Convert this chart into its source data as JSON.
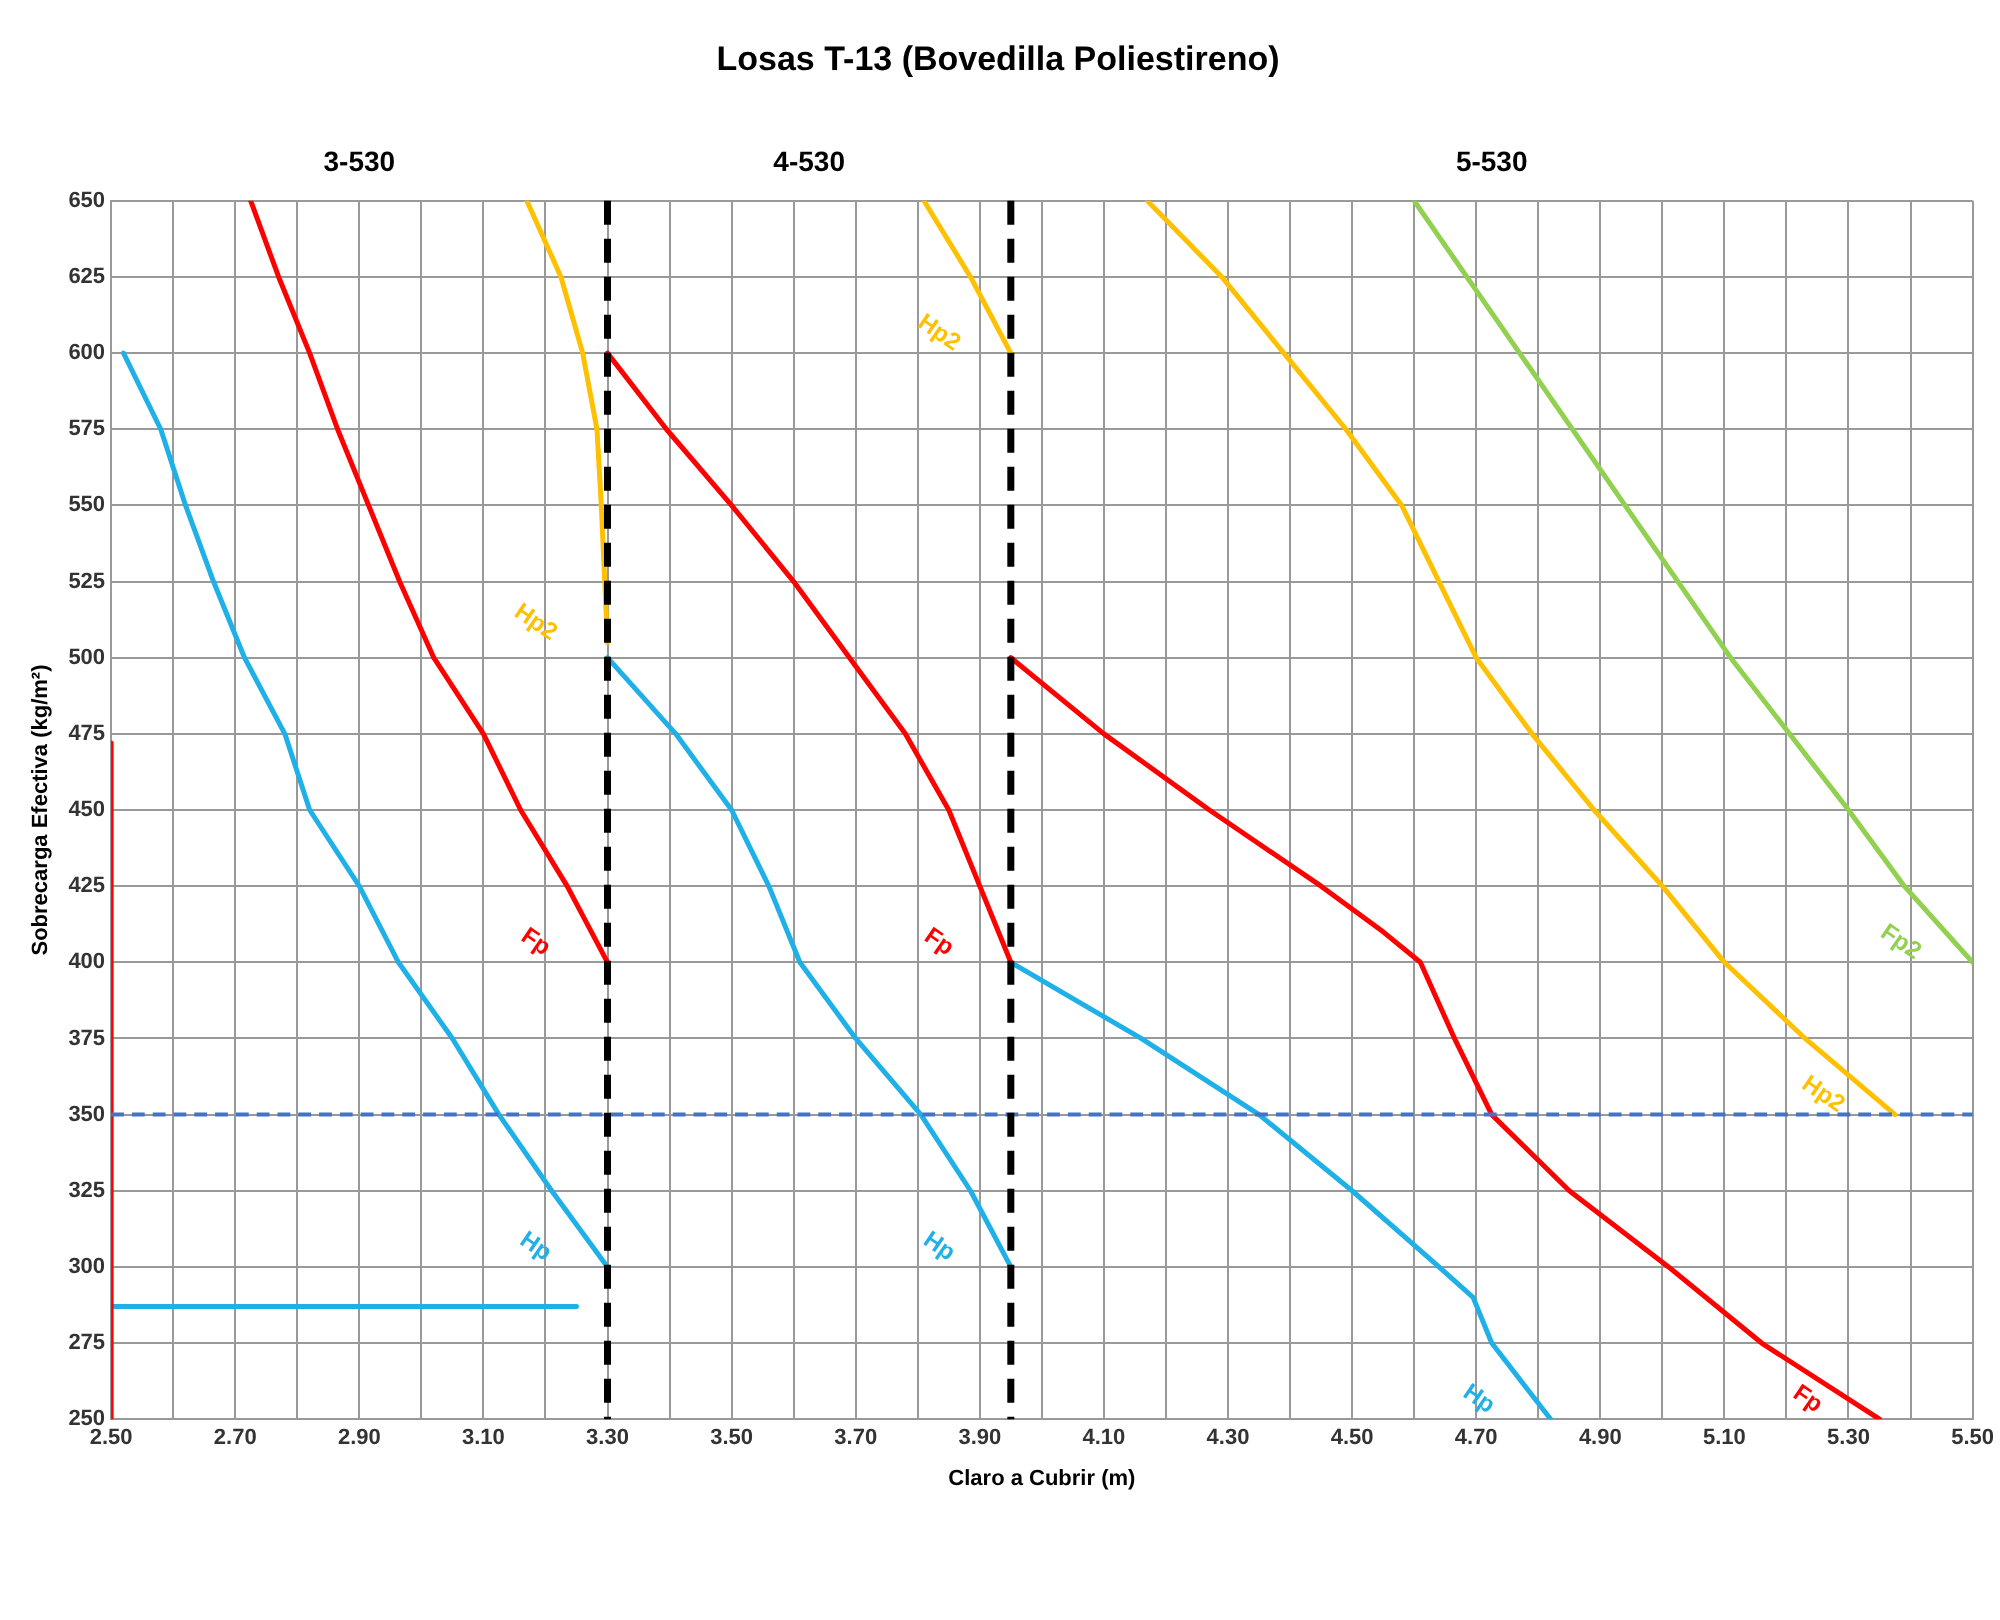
{
  "chart_data": {
    "type": "line",
    "title": "Losas T-13 (Bovedilla Poliestireno)",
    "xlabel": "Claro a Cubrir (m)",
    "ylabel": "Sobrecarga Efectiva (kg/m²)",
    "xlim": [
      2.5,
      5.5
    ],
    "ylim": [
      250,
      650
    ],
    "xticks": [
      {
        "value": 2.5,
        "label": "2.50"
      },
      {
        "value": 2.6,
        "label": null
      },
      {
        "value": 2.7,
        "label": "2.70"
      },
      {
        "value": 2.8,
        "label": null
      },
      {
        "value": 2.9,
        "label": "2.90"
      },
      {
        "value": 3.0,
        "label": null
      },
      {
        "value": 3.1,
        "label": "3.10"
      },
      {
        "value": 3.2,
        "label": null
      },
      {
        "value": 3.3,
        "label": "3.30"
      },
      {
        "value": 3.4,
        "label": null
      },
      {
        "value": 3.5,
        "label": "3.50"
      },
      {
        "value": 3.6,
        "label": null
      },
      {
        "value": 3.7,
        "label": "3.70"
      },
      {
        "value": 3.8,
        "label": null
      },
      {
        "value": 3.9,
        "label": "3.90"
      },
      {
        "value": 4.0,
        "label": null
      },
      {
        "value": 4.1,
        "label": "4.10"
      },
      {
        "value": 4.2,
        "label": null
      },
      {
        "value": 4.3,
        "label": "4.30"
      },
      {
        "value": 4.4,
        "label": null
      },
      {
        "value": 4.5,
        "label": "4.50"
      },
      {
        "value": 4.6,
        "label": null
      },
      {
        "value": 4.7,
        "label": "4.70"
      },
      {
        "value": 4.8,
        "label": null
      },
      {
        "value": 4.9,
        "label": "4.90"
      },
      {
        "value": 5.0,
        "label": null
      },
      {
        "value": 5.1,
        "label": "5.10"
      },
      {
        "value": 5.2,
        "label": null
      },
      {
        "value": 5.3,
        "label": "5.30"
      },
      {
        "value": 5.4,
        "label": null
      },
      {
        "value": 5.5,
        "label": "5.50"
      }
    ],
    "yticks": [
      250,
      275,
      300,
      325,
      350,
      375,
      400,
      425,
      450,
      475,
      500,
      525,
      550,
      575,
      600,
      625,
      650
    ],
    "grid": true,
    "legend": false,
    "marker": "none",
    "series": [
      {
        "name": "Hp",
        "color": "#1fb0e8",
        "x": [
          2.52,
          2.58,
          2.62,
          2.665,
          2.715,
          2.78,
          2.82,
          2.9,
          2.963,
          3.05,
          3.125,
          3.21,
          3.3
        ],
        "values": [
          600,
          575,
          550,
          525,
          500,
          475,
          450,
          425,
          400,
          375,
          350,
          325,
          300
        ]
      },
      {
        "name": "Fp",
        "color": "#ff0000",
        "x": [
          2.725,
          2.77,
          2.82,
          2.865,
          2.915,
          2.965,
          3.02,
          3.1,
          3.16,
          3.235,
          3.3
        ],
        "values": [
          650,
          625,
          600,
          575,
          550,
          525,
          500,
          475,
          450,
          425,
          400
        ]
      },
      {
        "name": "Hp2",
        "color": "#ffc000",
        "x": [
          3.17,
          3.225,
          3.26,
          3.283,
          3.29,
          3.3
        ],
        "values": [
          650,
          625,
          600,
          575,
          550,
          505
        ]
      },
      {
        "name": "Fp",
        "color": "#ff0000",
        "x": [
          3.3,
          3.395,
          3.5,
          3.6,
          3.69,
          3.78,
          3.85,
          3.9,
          3.95
        ],
        "values": [
          600,
          575,
          550,
          525,
          500,
          475,
          450,
          425,
          400
        ]
      },
      {
        "name": "Hp",
        "color": "#1fb0e8",
        "x": [
          3.3,
          3.41,
          3.5,
          3.56,
          3.61,
          3.7,
          3.805,
          3.885,
          3.95
        ],
        "values": [
          500,
          475,
          450,
          425,
          400,
          375,
          350,
          325,
          300
        ]
      },
      {
        "name": "Hp2",
        "color": "#ffc000",
        "x": [
          3.81,
          3.885,
          3.95
        ],
        "values": [
          650,
          625,
          600
        ]
      },
      {
        "name": "Hp2",
        "color": "#ffc000",
        "x": [
          4.17,
          4.29,
          4.39,
          4.49,
          4.58,
          4.64,
          4.7,
          4.79,
          4.89,
          5.0,
          5.1,
          5.23,
          5.375
        ],
        "values": [
          650,
          625,
          600,
          575,
          550,
          525,
          500,
          475,
          450,
          425,
          400,
          375,
          350
        ]
      },
      {
        "name": "Fp2",
        "color": "#92d050",
        "x": [
          4.6,
          4.77,
          4.94,
          5.11,
          5.3,
          5.39,
          5.5
        ],
        "values": [
          650,
          600,
          550,
          500,
          450,
          425,
          400
        ]
      },
      {
        "name": "Fp",
        "color": "#ff0000",
        "x": [
          3.95,
          4.1,
          4.27,
          4.45,
          4.55,
          4.61,
          4.665,
          4.725,
          4.85,
          5.01,
          5.16,
          5.35
        ],
        "values": [
          500,
          475,
          450,
          425,
          410,
          400,
          375,
          350,
          325,
          300,
          275,
          250
        ]
      },
      {
        "name": "Hp",
        "color": "#1fb0e8",
        "x": [
          3.95,
          4.16,
          4.35,
          4.5,
          4.64,
          4.695,
          4.725,
          4.82
        ],
        "values": [
          400,
          375,
          350,
          325,
          300,
          290,
          275,
          250
        ]
      },
      {
        "color": "#ff0000",
        "x": [
          2.5,
          2.5
        ],
        "values": [
          250,
          472
        ]
      },
      {
        "color": "#1fb0e8",
        "x": [
          2.5,
          3.25
        ],
        "values": [
          287,
          287
        ]
      }
    ],
    "ref_lines": [
      {
        "axis": "y",
        "value": 350,
        "color": "#4472c4",
        "line_style": "dashed"
      },
      {
        "axis": "x",
        "value": 3.3,
        "color": "#000000",
        "line_style": "dashed"
      },
      {
        "axis": "x",
        "value": 3.95,
        "color": "#000000",
        "line_style": "dashed"
      }
    ],
    "annotations": [
      "3-530",
      "4-530",
      "5-530"
    ]
  }
}
